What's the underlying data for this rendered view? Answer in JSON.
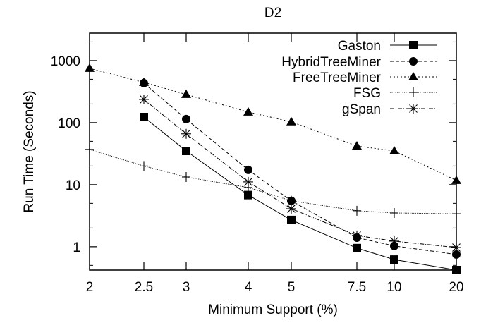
{
  "chart_data": {
    "type": "line",
    "title": "D2",
    "xlabel": "Minimum Support (%)",
    "ylabel": "Run Time (Seconds)",
    "x_scale": "categorical",
    "y_scale": "log",
    "ylim": [
      0.42,
      2770
    ],
    "categories": [
      "2",
      "2.5",
      "3",
      "4",
      "5",
      "7.5",
      "10",
      "20"
    ],
    "y_ticks": [
      {
        "value": 1,
        "label": "1"
      },
      {
        "value": 10,
        "label": "10"
      },
      {
        "value": 100,
        "label": "100"
      },
      {
        "value": 1000,
        "label": "1000"
      }
    ],
    "grid": false,
    "legend_position": "top-right",
    "series": [
      {
        "name": "Gaston",
        "marker": "square",
        "dash": "",
        "values": [
          null,
          123,
          35,
          6.8,
          2.7,
          0.95,
          0.62,
          0.42
        ]
      },
      {
        "name": "HybridTreeMiner",
        "marker": "circle",
        "dash": "5,3",
        "values": [
          null,
          433,
          114,
          17.3,
          5.5,
          1.4,
          1.03,
          0.75
        ]
      },
      {
        "name": "FreeTreeMiner",
        "marker": "triangle",
        "dash": "2,3",
        "values": [
          750,
          445,
          285,
          148,
          103,
          42,
          35,
          11.7
        ]
      },
      {
        "name": "FSG",
        "marker": "plus",
        "dash": "1,1.5",
        "values": [
          37,
          20,
          13.3,
          9,
          5.5,
          3.8,
          3.5,
          3.4
        ]
      },
      {
        "name": "gSpan",
        "marker": "star",
        "dash": "6,2,1,2",
        "values": [
          null,
          237,
          66,
          11.1,
          4.1,
          1.52,
          1.23,
          0.97
        ]
      }
    ]
  }
}
